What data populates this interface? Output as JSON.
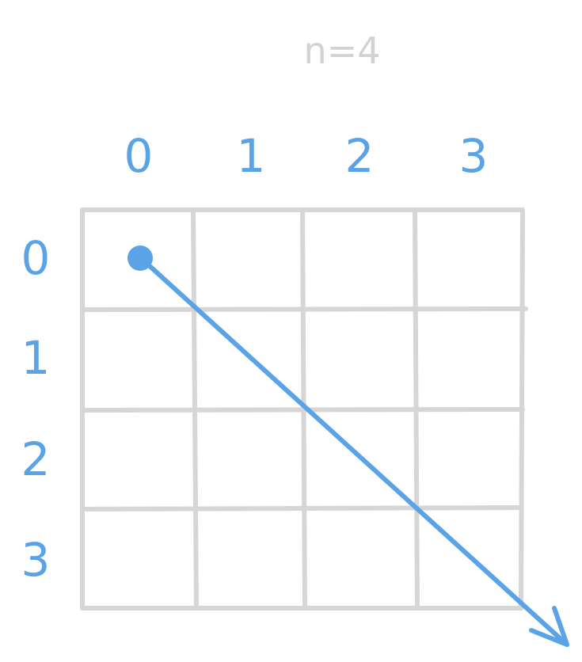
{
  "title": "n=4",
  "grid": {
    "n": 4,
    "column_labels": [
      "0",
      "1",
      "2",
      "3"
    ],
    "row_labels": [
      "0",
      "1",
      "2",
      "3"
    ]
  },
  "start_marker": {
    "row": 0,
    "col": 0
  },
  "arrow": {
    "direction": "down-right diagonal"
  },
  "colors": {
    "accent": "#5aa3e6",
    "grid": "#d6d6d6",
    "title": "#d2d2d2"
  }
}
